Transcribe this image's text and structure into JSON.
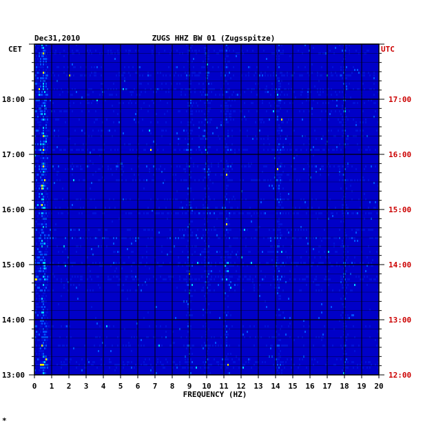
{
  "chart_data": {
    "type": "heatmap",
    "date_label": "Dec31,2010",
    "station_title": "ZUGS HHZ BW 01 (Zugsspitze)",
    "left_time_zone": "CET",
    "right_time_zone": "UTC",
    "xlabel": "FREQUENCY (HZ)",
    "xlim": [
      0,
      20
    ],
    "x_ticks": [
      "0",
      "1",
      "2",
      "3",
      "4",
      "5",
      "6",
      "7",
      "8",
      "9",
      "10",
      "11",
      "12",
      "13",
      "14",
      "15",
      "16",
      "17",
      "18",
      "19",
      "20"
    ],
    "left_time_ticks": [
      "18:00",
      "17:00",
      "16:00",
      "15:00",
      "14:00",
      "13:00"
    ],
    "right_time_ticks": [
      "17:00",
      "16:00",
      "15:00",
      "14:00",
      "13:00",
      "12:00"
    ],
    "time_range_cet": [
      "13:00",
      "19:00"
    ],
    "dominant_frequency_bands_hz": [
      0.5,
      9,
      10,
      11.2,
      14.2,
      18
    ],
    "colors": {
      "background": "#0000c8",
      "low": "#0010d8",
      "mid": "#0050ff",
      "high": "#00d0ff",
      "peak": "#ffff00",
      "right_axis_text": "#cc0000",
      "left_axis_text": "#000000"
    },
    "footer_mark": "*"
  }
}
